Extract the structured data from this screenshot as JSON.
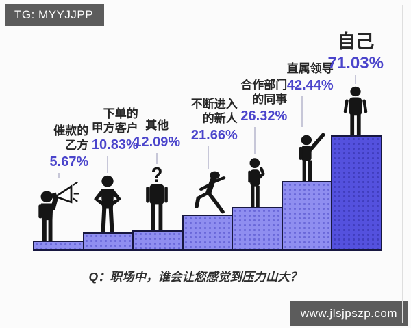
{
  "watermarks": {
    "top_left": "TG: MYYJJPP",
    "bottom_right": "www.jlsjpszp.com"
  },
  "caption": "Q：职场中，谁会让您感觉到压力山大？",
  "colors": {
    "bar_fill": "#8f8ef0",
    "bar_dot": "#6a68d9",
    "bar_fill_emphasis": "#5451de",
    "bar_dot_emphasis": "#403dbd",
    "bar_border": "#171740",
    "percent_text": "#4a44cb",
    "label_text": "#262626",
    "caption_text": "#2f2f2f",
    "connector_line": "#c7c7d8",
    "figure_silhouette": "#151515",
    "badge_bg": "#5c5c5c",
    "badge_text": "#ffffff"
  },
  "chart_data": {
    "type": "bar",
    "title": "Q：职场中，谁会让您感觉到压力山大？",
    "categories": [
      "催款的乙方",
      "下单的甲方客户",
      "其他",
      "不断进入的新人",
      "合作部门的同事",
      "直属领导",
      "自己"
    ],
    "label_lines": [
      [
        "催款的",
        "乙方"
      ],
      [
        "下单的",
        "甲方客户"
      ],
      [
        "其他"
      ],
      [
        "不断进入",
        "的新人"
      ],
      [
        "合作部门",
        "的同事"
      ],
      [
        "直属领导"
      ],
      [
        "自己"
      ]
    ],
    "values": [
      5.67,
      10.83,
      12.09,
      21.66,
      26.32,
      42.44,
      71.03
    ],
    "value_labels": [
      "5.67%",
      "10.83%",
      "12.09%",
      "21.66%",
      "26.32%",
      "42.44%",
      "71.03%"
    ],
    "figures": [
      "megaphone-figure",
      "hands-on-hips-figure",
      "question-head-figure",
      "running-figure",
      "thinking-figure",
      "arm-raised-figure",
      "standing-figure"
    ],
    "emphasis_index": 6,
    "ylim": [
      0,
      71.03
    ],
    "xlabel": "",
    "ylabel": "",
    "grid": false,
    "legend": false
  }
}
